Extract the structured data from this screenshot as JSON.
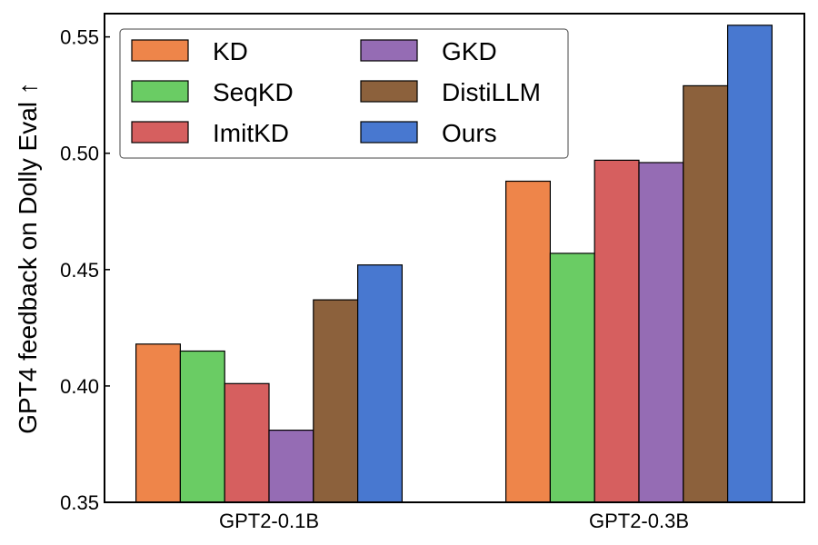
{
  "chart_data": {
    "type": "bar",
    "title": "",
    "xlabel": "",
    "ylabel": "GPT4 feedback on Dolly Eval ↑",
    "categories": [
      "GPT2-0.1B",
      "GPT2-0.3B"
    ],
    "ylim": [
      0.35,
      0.56
    ],
    "yticks": [
      "0.35",
      "0.40",
      "0.45",
      "0.50",
      "0.55"
    ],
    "legend_position": "top-left",
    "grid": false,
    "series": [
      {
        "name": "KD",
        "color": "#ee854a",
        "values": [
          0.418,
          0.488
        ]
      },
      {
        "name": "SeqKD",
        "color": "#6acc64",
        "values": [
          0.415,
          0.457
        ]
      },
      {
        "name": "ImitKD",
        "color": "#d65f5f",
        "values": [
          0.401,
          0.497
        ]
      },
      {
        "name": "GKD",
        "color": "#956cb4",
        "values": [
          0.381,
          0.496
        ]
      },
      {
        "name": "DistiLLM",
        "color": "#8c613c",
        "values": [
          0.437,
          0.529
        ]
      },
      {
        "name": "Ours",
        "color": "#4878d0",
        "values": [
          0.452,
          0.555
        ]
      }
    ]
  }
}
